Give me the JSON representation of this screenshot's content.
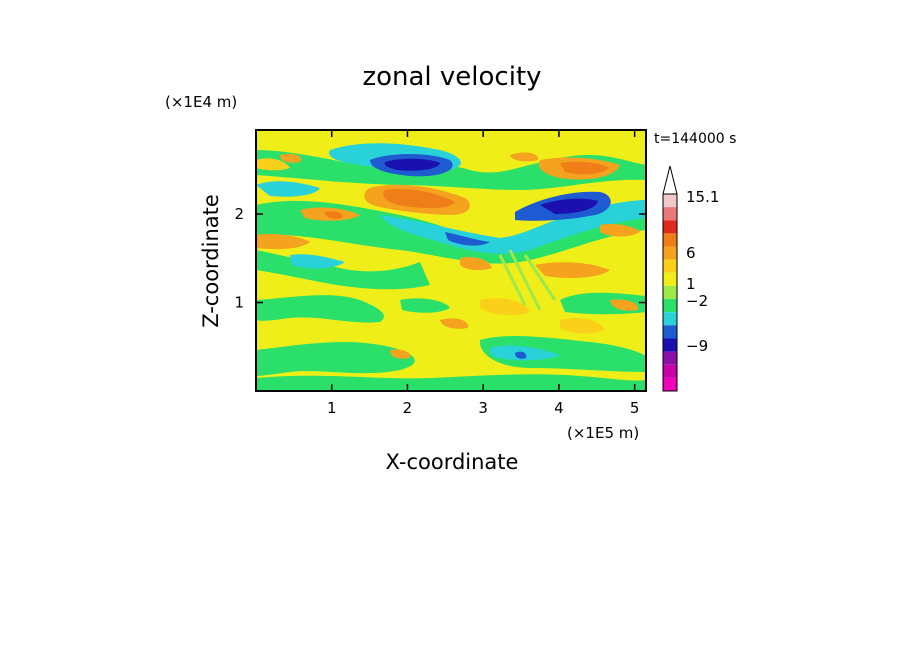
{
  "chart_data": {
    "type": "heatmap",
    "title": "zonal velocity",
    "xlabel": "X-coordinate",
    "ylabel": "Z-coordinate",
    "x_scale_label": "(×1E5 m)",
    "y_scale_label": "(×1E4 m)",
    "time_label": "t=144000 s",
    "xlim": [
      0,
      5.15
    ],
    "ylim": [
      0,
      2.95
    ],
    "x_ticks": [
      "1",
      "2",
      "3",
      "4",
      "5"
    ],
    "y_ticks": [
      "1",
      "2"
    ],
    "colorbar": {
      "labels": [
        "15.1",
        "6",
        "1",
        "−2",
        "−9"
      ],
      "colors": [
        "#f0c8c8",
        "#e87a78",
        "#e02a1e",
        "#f07e18",
        "#f5a21e",
        "#fbd01a",
        "#f0ee18",
        "#9de84a",
        "#2be06a",
        "#28d2d8",
        "#1e5ad0",
        "#1a10b0",
        "#8a10a8",
        "#c800a8",
        "#f000b8"
      ]
    },
    "fields": {
      "background": "yellow",
      "notable_features": [
        {
          "name": "negative jet upper-left",
          "x": 2.2,
          "z": 2.55,
          "sign": "negative"
        },
        {
          "name": "negative jet right",
          "x": 4.0,
          "z": 2.1,
          "sign": "negative"
        },
        {
          "name": "positive core",
          "x": 2.3,
          "z": 2.2,
          "sign": "positive"
        },
        {
          "name": "positive core upper-right",
          "x": 4.1,
          "z": 2.55,
          "sign": "positive"
        }
      ]
    }
  }
}
